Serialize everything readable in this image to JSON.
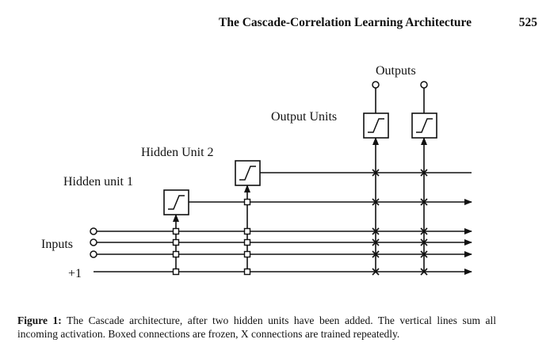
{
  "header": {
    "running_title": "The Cascade-Correlation Learning Architecture",
    "page_number": "525"
  },
  "diagram": {
    "labels": {
      "outputs": "Outputs",
      "output_units": "Output Units",
      "hidden_unit_2": "Hidden Unit 2",
      "hidden_unit_1": "Hidden unit 1",
      "inputs": "Inputs",
      "bias": "+1"
    },
    "connection_types": [
      "frozen",
      "trained"
    ]
  },
  "caption": {
    "label": "Figure 1:",
    "text": "The Cascade architecture, after two hidden units have been added. The vertical lines sum all incoming activation. Boxed connections are frozen, X connections are trained repeatedly."
  }
}
